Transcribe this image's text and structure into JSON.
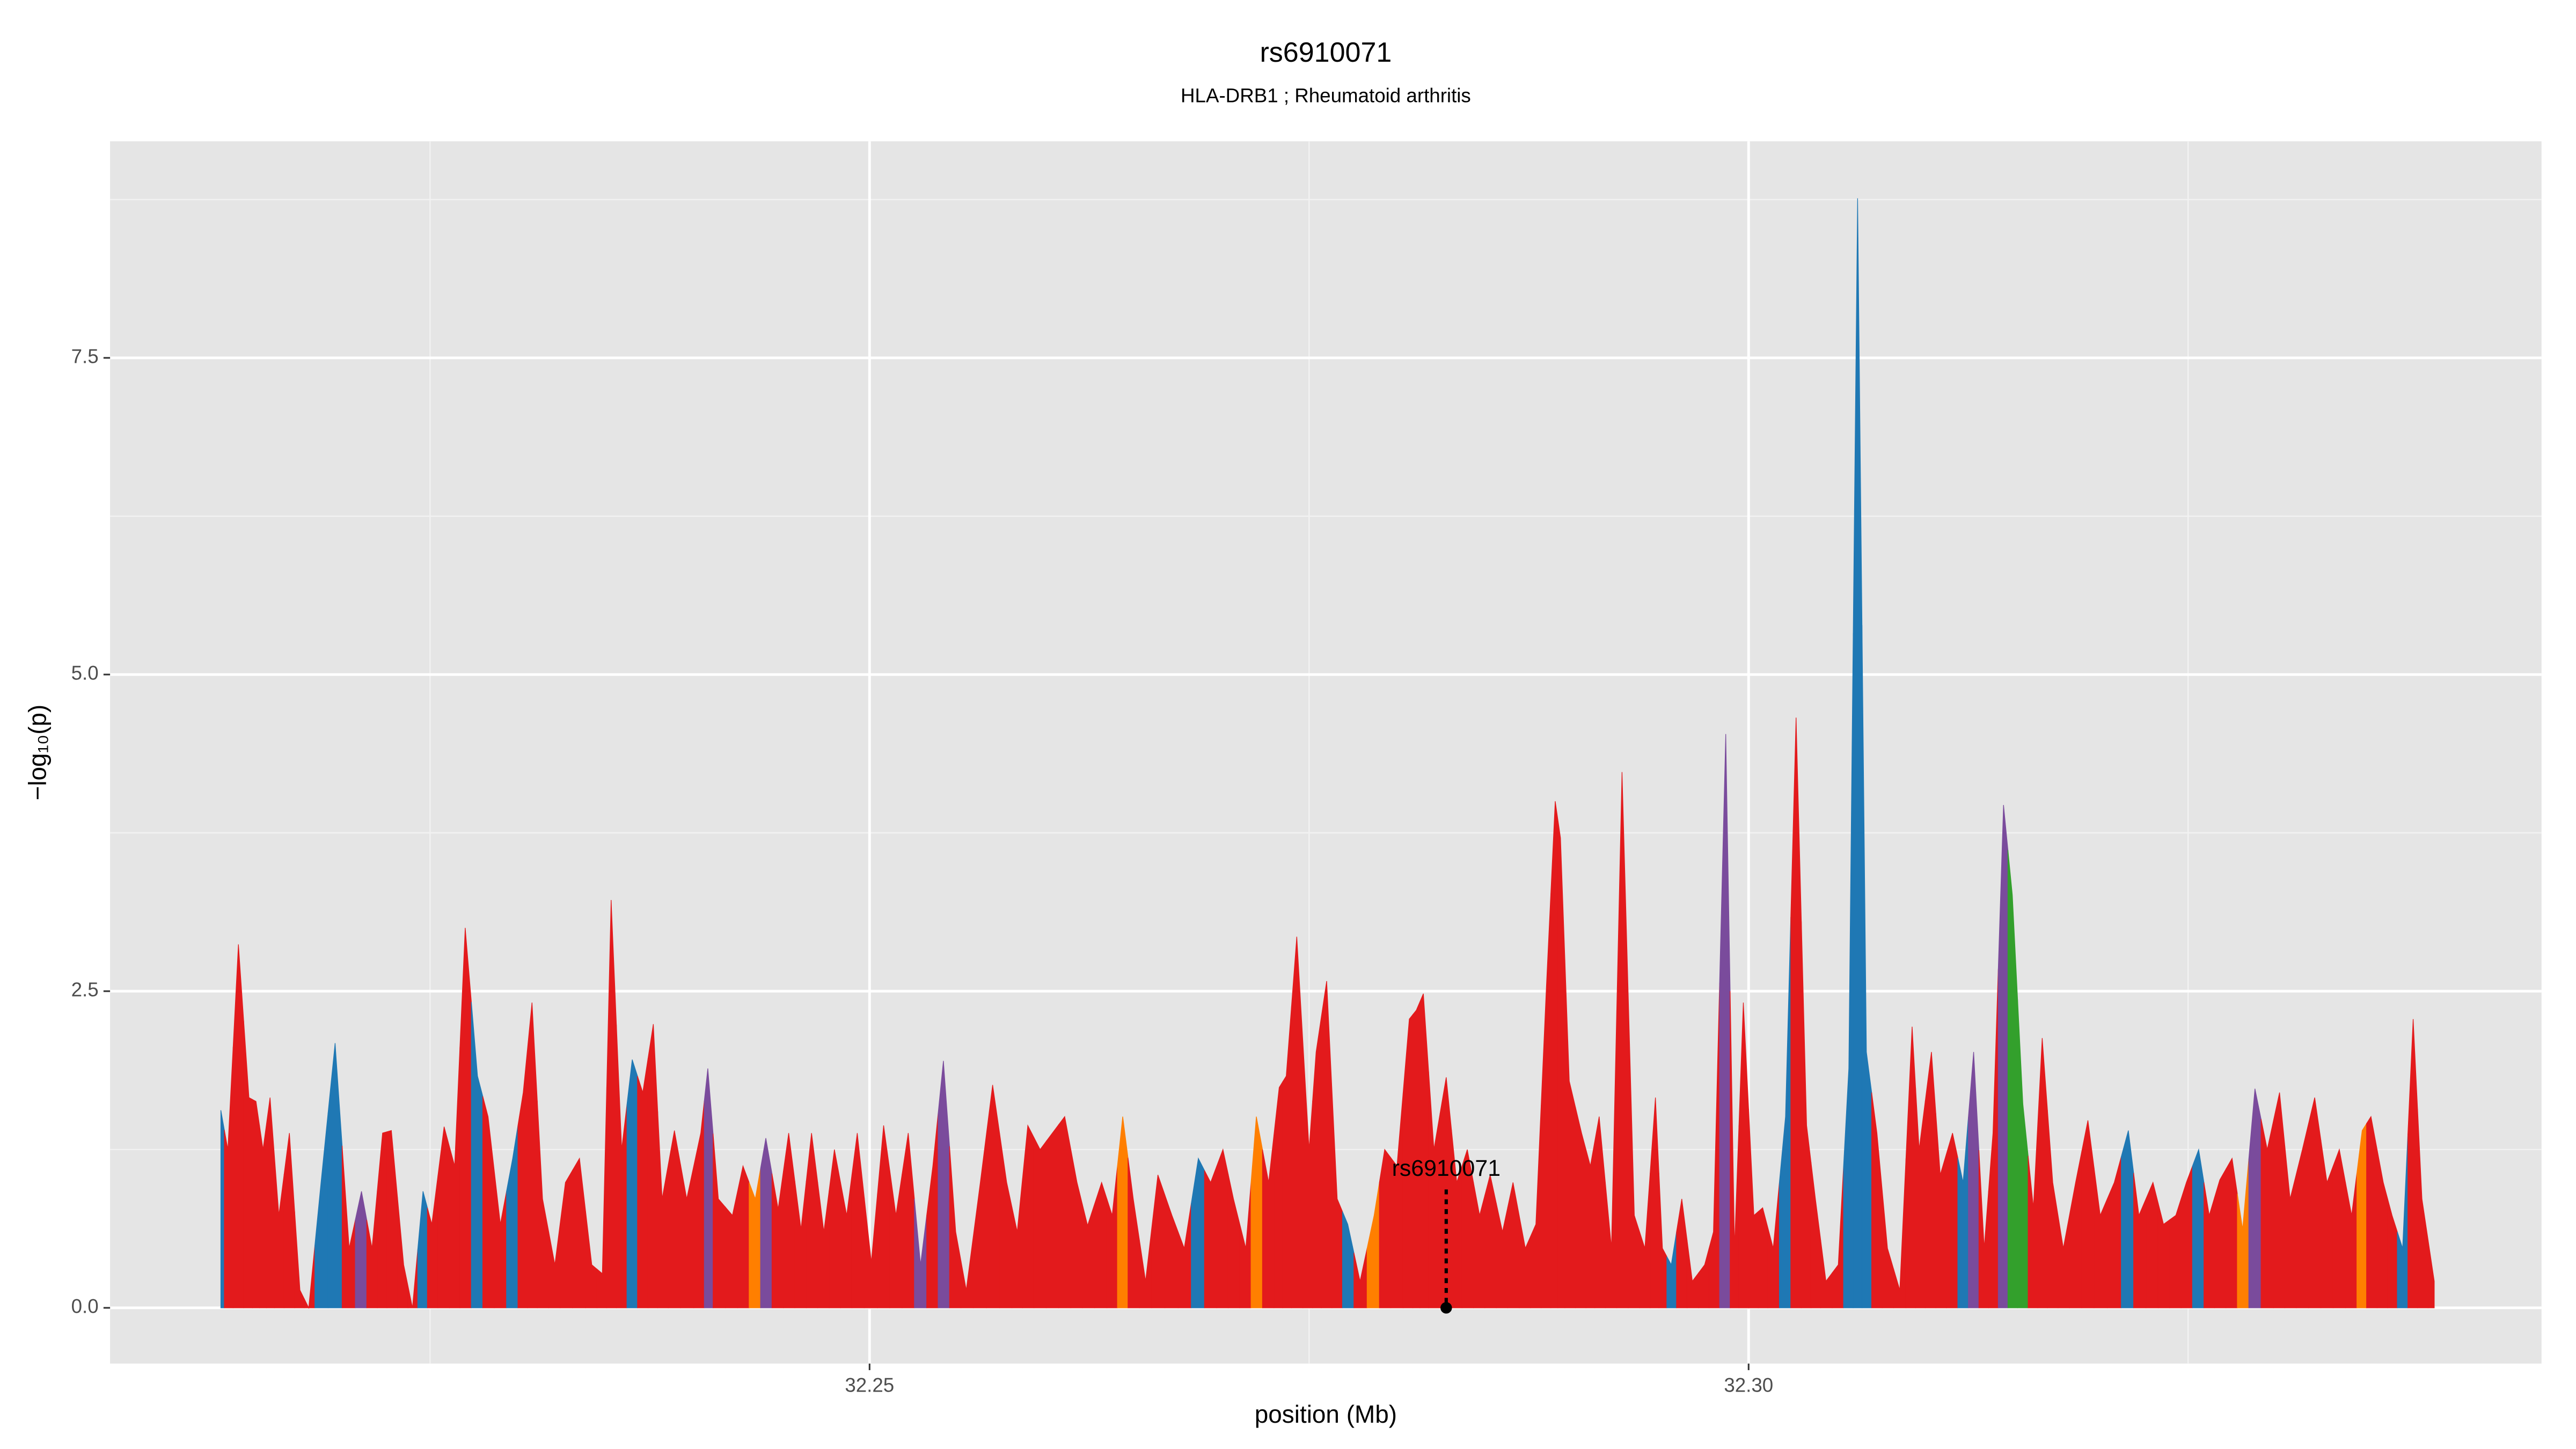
{
  "chart_data": {
    "type": "area",
    "title": "rs6910071",
    "subtitle": "HLA-DRB1 ; Rheumatoid arthritis",
    "xlabel": "position (Mb)",
    "ylabel": "−log₁₀(p)",
    "xlim": [
      32.2068,
      32.3451
    ],
    "ylim": [
      -0.44,
      9.21
    ],
    "xticks": [
      32.25,
      {
        "value": 32.3,
        "label": "32.30"
      }
    ],
    "xminor": [
      32.225,
      32.275,
      32.325
    ],
    "yticks": [
      {
        "value": 0,
        "label": "0.0"
      },
      2.5,
      {
        "value": 5,
        "label": "5.0"
      },
      7.5
    ],
    "yminor": [
      1.25,
      3.75,
      6.25,
      8.75
    ],
    "grid": true,
    "background": "#e5e5e5",
    "x": [
      32.2131,
      32.2135,
      32.2141,
      32.2147,
      32.2151,
      32.2155,
      32.2159,
      32.2164,
      32.217,
      32.2176,
      32.2181,
      32.2188,
      32.2196,
      32.2204,
      32.2211,
      32.2217,
      32.2223,
      32.2228,
      32.2235,
      32.224,
      32.2246,
      32.2251,
      32.2258,
      32.2264,
      32.227,
      32.2277,
      32.2283,
      32.229,
      32.2297,
      32.2303,
      32.2308,
      32.2314,
      32.2321,
      32.2327,
      32.2335,
      32.2342,
      32.2348,
      32.2353,
      32.2359,
      32.2365,
      32.2371,
      32.2377,
      32.2382,
      32.2389,
      32.2396,
      32.2404,
      32.2408,
      32.2414,
      32.2422,
      32.2428,
      32.2435,
      32.2441,
      32.2448,
      32.2454,
      32.2461,
      32.2467,
      32.2474,
      32.248,
      32.2487,
      32.2493,
      32.2501,
      32.2508,
      32.2515,
      32.2522,
      32.2529,
      32.2536,
      32.2542,
      32.2549,
      32.2555,
      32.2563,
      32.257,
      32.2578,
      32.2584,
      32.259,
      32.2597,
      32.2604,
      32.2611,
      32.2618,
      32.2624,
      32.2632,
      32.2638,
      32.2644,
      32.265,
      32.2657,
      32.2664,
      32.2672,
      32.2679,
      32.2687,
      32.2694,
      32.2701,
      32.2707,
      32.2714,
      32.272,
      32.2727,
      32.2733,
      32.2737,
      32.2743,
      32.275,
      32.2754,
      32.276,
      32.2766,
      32.2772,
      32.2779,
      32.2787,
      32.2793,
      32.28,
      32.2807,
      32.2811,
      32.2815,
      32.2821,
      32.2828,
      32.2834,
      32.284,
      32.2847,
      32.2853,
      32.286,
      32.2866,
      32.2873,
      32.2879,
      32.2885,
      32.289,
      32.2893,
      32.2898,
      32.2905,
      32.291,
      32.2915,
      32.2922,
      32.2928,
      32.2935,
      32.2941,
      32.2947,
      32.2951,
      32.2956,
      32.2962,
      32.2968,
      32.2975,
      32.298,
      32.2987,
      32.2992,
      32.2997,
      32.3003,
      32.3008,
      32.3014,
      32.3021,
      32.3027,
      32.3033,
      32.3038,
      32.3044,
      32.3051,
      32.3057,
      32.3062,
      32.3067,
      32.3073,
      32.3079,
      32.3086,
      32.3093,
      32.3097,
      32.3104,
      32.3109,
      32.3116,
      32.3122,
      32.3128,
      32.3134,
      32.3139,
      32.3145,
      32.315,
      32.3156,
      32.3162,
      32.3167,
      32.3173,
      32.3179,
      32.3186,
      32.3193,
      32.32,
      32.3208,
      32.3216,
      32.3222,
      32.323,
      32.3236,
      32.3243,
      32.3249,
      32.3256,
      32.3262,
      32.3268,
      32.3275,
      32.3281,
      32.3288,
      32.3295,
      32.3302,
      32.3308,
      32.3315,
      32.3322,
      32.3329,
      32.3336,
      32.3343,
      32.3349,
      32.3354,
      32.3361,
      32.3366,
      32.3372,
      32.3378,
      32.3383,
      32.339
    ],
    "values": [
      1.56,
      1.25,
      2.87,
      1.66,
      1.63,
      1.25,
      1.66,
      0.73,
      1.38,
      0.14,
      0,
      0.99,
      2.09,
      0.47,
      0.92,
      0.47,
      1.38,
      1.4,
      0.34,
      0,
      0.92,
      0.66,
      1.43,
      1.12,
      3,
      1.83,
      1.51,
      0.66,
      1.18,
      1.7,
      2.41,
      0.86,
      0.34,
      0.99,
      1.18,
      0.34,
      0.27,
      3.22,
      1.25,
      1.96,
      1.7,
      2.24,
      0.86,
      1.4,
      0.86,
      1.38,
      1.89,
      0.86,
      0.73,
      1.12,
      0.86,
      1.34,
      0.78,
      1.38,
      0.62,
      1.38,
      0.6,
      1.25,
      0.73,
      1.38,
      0.36,
      1.44,
      0.73,
      1.38,
      0.34,
      1.12,
      1.95,
      0.6,
      0.14,
      0.99,
      1.76,
      0.99,
      0.6,
      1.44,
      1.25,
      1.38,
      1.51,
      0.99,
      0.65,
      0.99,
      0.73,
      1.51,
      0.86,
      0.21,
      1.05,
      0.73,
      0.47,
      1.18,
      0.99,
      1.25,
      0.86,
      0.47,
      1.51,
      0.99,
      1.74,
      1.83,
      2.93,
      1.25,
      2.02,
      2.58,
      0.86,
      0.66,
      0.21,
      0.73,
      1.25,
      1.12,
      2.28,
      2.35,
      2.48,
      1.25,
      1.82,
      0.99,
      1.25,
      0.73,
      1.05,
      0.6,
      0.99,
      0.47,
      0.66,
      2.54,
      4.0,
      3.71,
      1.79,
      1.38,
      1.12,
      1.51,
      0.47,
      4.23,
      0.73,
      0.47,
      1.66,
      0.47,
      0.34,
      0.86,
      0.21,
      0.34,
      0.6,
      4.53,
      0.47,
      2.41,
      0.73,
      0.79,
      0.47,
      1.51,
      4.66,
      1.44,
      0.86,
      0.21,
      0.34,
      1.89,
      8.76,
      2.02,
      1.38,
      0.47,
      0.14,
      2.22,
      1.25,
      2.02,
      1.05,
      1.38,
      0.99,
      2.02,
      0.47,
      1.38,
      3.97,
      3.26,
      1.61,
      0.79,
      2.13,
      0.99,
      0.47,
      0.99,
      1.48,
      0.73,
      0.99,
      1.4,
      0.73,
      0.99,
      0.66,
      0.73,
      0.99,
      1.25,
      0.73,
      1.01,
      1.18,
      0.62,
      1.73,
      1.25,
      1.7,
      0.86,
      1.25,
      1.66,
      0.99,
      1.25,
      0.73,
      1.4,
      1.51,
      0.99,
      0.73,
      0.47,
      2.28,
      0.86,
      0.21
    ],
    "colors": [
      "#1f78b4",
      "#e31a1c",
      "#e31a1c",
      "#e31a1c",
      "#e31a1c",
      "#e31a1c",
      "#e31a1c",
      "#e31a1c",
      "#e31a1c",
      "#e31a1c",
      "#e31a1c",
      "#1f78b4",
      "#1f78b4",
      "#e31a1c",
      "#7a4b9c",
      "#e31a1c",
      "#e31a1c",
      "#e31a1c",
      "#e31a1c",
      "#e31a1c",
      "#1f78b4",
      "#e31a1c",
      "#e31a1c",
      "#e31a1c",
      "#e31a1c",
      "#1f78b4",
      "#e31a1c",
      "#e31a1c",
      "#1f78b4",
      "#e31a1c",
      "#e31a1c",
      "#e31a1c",
      "#e31a1c",
      "#e31a1c",
      "#e31a1c",
      "#e31a1c",
      "#e31a1c",
      "#e31a1c",
      "#e31a1c",
      "#1f78b4",
      "#e31a1c",
      "#e31a1c",
      "#e31a1c",
      "#e31a1c",
      "#e31a1c",
      "#e31a1c",
      "#7a4b9c",
      "#e31a1c",
      "#e31a1c",
      "#e31a1c",
      "#ff7f00",
      "#7a4b9c",
      "#e31a1c",
      "#e31a1c",
      "#e31a1c",
      "#e31a1c",
      "#e31a1c",
      "#e31a1c",
      "#e31a1c",
      "#e31a1c",
      "#e31a1c",
      "#e31a1c",
      "#e31a1c",
      "#e31a1c",
      "#7a4b9c",
      "#e31a1c",
      "#7a4b9c",
      "#e31a1c",
      "#e31a1c",
      "#e31a1c",
      "#e31a1c",
      "#e31a1c",
      "#e31a1c",
      "#e31a1c",
      "#e31a1c",
      "#e31a1c",
      "#e31a1c",
      "#e31a1c",
      "#e31a1c",
      "#e31a1c",
      "#e31a1c",
      "#ff7f00",
      "#e31a1c",
      "#e31a1c",
      "#e31a1c",
      "#e31a1c",
      "#e31a1c",
      "#1f78b4",
      "#e31a1c",
      "#e31a1c",
      "#e31a1c",
      "#e31a1c",
      "#ff7f00",
      "#e31a1c",
      "#e31a1c",
      "#e31a1c",
      "#e31a1c",
      "#e31a1c",
      "#e31a1c",
      "#e31a1c",
      "#e31a1c",
      "#1f78b4",
      "#e31a1c",
      "#ff7f00",
      "#e31a1c",
      "#e31a1c",
      "#e31a1c",
      "#e31a1c",
      "#e31a1c",
      "#e31a1c",
      "#e31a1c",
      "#e31a1c",
      "#e31a1c",
      "#e31a1c",
      "#e31a1c",
      "#e31a1c",
      "#e31a1c",
      "#e31a1c",
      "#e31a1c",
      "#e31a1c",
      "#e31a1c",
      "#e31a1c",
      "#e31a1c",
      "#e31a1c",
      "#e31a1c",
      "#e31a1c",
      "#e31a1c",
      "#e31a1c",
      "#e31a1c",
      "#e31a1c",
      "#e31a1c",
      "#e31a1c",
      "#1f78b4",
      "#e31a1c",
      "#e31a1c",
      "#e31a1c",
      "#e31a1c",
      "#7a4b9c",
      "#e31a1c",
      "#e31a1c",
      "#e31a1c",
      "#e31a1c",
      "#e31a1c",
      "#1f78b4",
      "#e31a1c",
      "#e31a1c",
      "#e31a1c",
      "#e31a1c",
      "#e31a1c",
      "#1f78b4",
      "#1f78b4",
      "#1f78b4",
      "#e31a1c",
      "#e31a1c",
      "#e31a1c",
      "#e31a1c",
      "#e31a1c",
      "#e31a1c",
      "#e31a1c",
      "#e31a1c",
      "#1f78b4",
      "#7a4b9c",
      "#e31a1c",
      "#e31a1c",
      "#7a4b9c",
      "#33a02c",
      "#33a02c",
      "#e31a1c",
      "#e31a1c",
      "#e31a1c",
      "#e31a1c",
      "#e31a1c",
      "#e31a1c",
      "#e31a1c",
      "#e31a1c",
      "#1f78b4",
      "#e31a1c",
      "#e31a1c",
      "#e31a1c",
      "#e31a1c",
      "#e31a1c",
      "#1f78b4",
      "#e31a1c",
      "#e31a1c",
      "#e31a1c",
      "#ff7f00",
      "#7a4b9c",
      "#e31a1c",
      "#e31a1c",
      "#e31a1c",
      "#e31a1c",
      "#e31a1c",
      "#e31a1c",
      "#e31a1c",
      "#e31a1c",
      "#ff7f00",
      "#e31a1c",
      "#e31a1c",
      "#e31a1c",
      "#1f78b4",
      "#e31a1c",
      "#e31a1c",
      "#e31a1c"
    ],
    "annotation": {
      "text": "rs6910071",
      "x": 32.2828,
      "y": 0
    }
  }
}
